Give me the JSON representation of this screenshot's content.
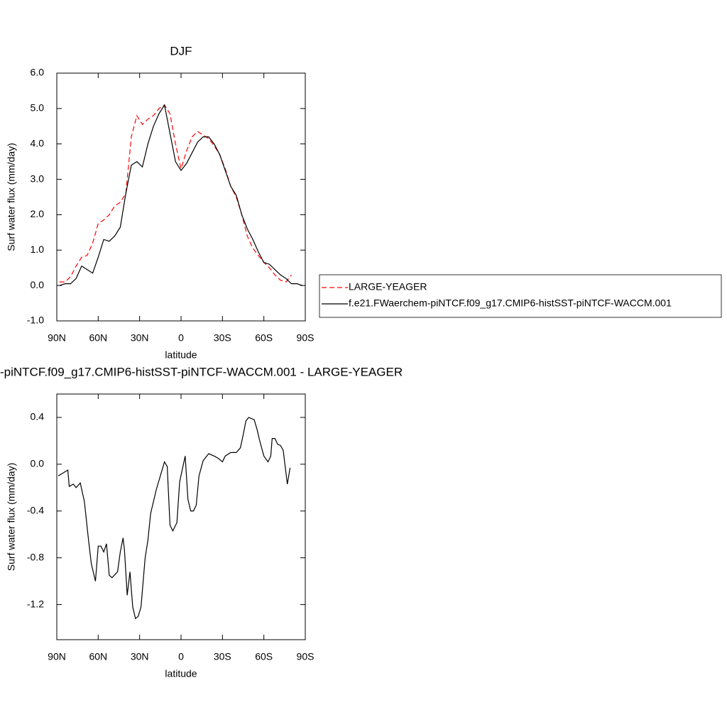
{
  "chart_data": [
    {
      "type": "line",
      "title": "DJF",
      "xlabel": "latitude",
      "ylabel": "Surf water flux (mm/day)",
      "xlim": [
        90,
        -90
      ],
      "xticks": [
        {
          "value": 90,
          "label": "90N"
        },
        {
          "value": 60,
          "label": "60N"
        },
        {
          "value": 30,
          "label": "30N"
        },
        0,
        {
          "value": -30,
          "label": "30S"
        },
        {
          "value": -60,
          "label": "60S"
        },
        {
          "value": -90,
          "label": "90S"
        }
      ],
      "ylim": [
        -1,
        6
      ],
      "yticks": [
        {
          "value": 6,
          "label": "6.0"
        },
        {
          "value": 5,
          "label": "5.0"
        },
        {
          "value": 4,
          "label": "4.0"
        },
        {
          "value": 3,
          "label": "3.0"
        },
        {
          "value": 2,
          "label": "2.0"
        },
        {
          "value": 1,
          "label": "1.0"
        },
        {
          "value": 0,
          "label": "0.0"
        },
        {
          "value": -1,
          "label": "-1.0"
        }
      ],
      "legend": "right",
      "x": [
        88,
        84,
        80,
        76,
        72,
        68,
        64,
        60,
        56,
        52,
        48,
        44,
        40,
        36,
        32,
        28,
        24,
        20,
        16,
        12,
        8,
        4,
        0,
        -4,
        -8,
        -12,
        -16,
        -20,
        -24,
        -28,
        -32,
        -36,
        -40,
        -44,
        -48,
        -52,
        -56,
        -60,
        -64,
        -68,
        -72,
        -76,
        -80,
        -84,
        -88
      ],
      "series": [
        {
          "name": "LARGE-YEAGER",
          "color": "#ff0000",
          "line_style": "dashed",
          "values": [
            0.1,
            0.1,
            0.25,
            0.55,
            0.8,
            0.85,
            1.2,
            1.75,
            1.85,
            2.0,
            2.25,
            2.35,
            2.6,
            4.2,
            4.8,
            4.55,
            4.7,
            4.8,
            5.0,
            5.1,
            4.85,
            4.0,
            3.3,
            3.8,
            4.2,
            4.35,
            4.25,
            4.15,
            3.95,
            3.7,
            3.3,
            2.8,
            2.5,
            2.0,
            1.4,
            1.05,
            0.85,
            0.65,
            0.5,
            0.3,
            0.15,
            0.1,
            0.3,
            null,
            null
          ]
        },
        {
          "name": "f.e21.FWaerchem-piNTCF.f09_g17.CMIP6-histSST-piNTCF-WACCM.001",
          "color": "#000000",
          "line_style": "solid",
          "values": [
            0.0,
            0.05,
            0.05,
            0.2,
            0.55,
            0.45,
            0.35,
            0.8,
            1.3,
            1.25,
            1.4,
            1.65,
            2.6,
            3.4,
            3.5,
            3.35,
            4.0,
            4.5,
            4.85,
            5.1,
            4.3,
            3.5,
            3.25,
            3.45,
            3.75,
            4.05,
            4.2,
            4.2,
            4.0,
            3.7,
            3.25,
            2.8,
            2.55,
            2.0,
            1.6,
            1.3,
            0.95,
            0.65,
            0.6,
            0.45,
            0.3,
            0.2,
            0.05,
            0.05,
            0.0
          ]
        }
      ]
    },
    {
      "type": "line",
      "title": "-piNTCF.f09_g17.CMIP6-histSST-piNTCF-WACCM.001 - LARGE-YEAGER",
      "xlabel": "latitude",
      "ylabel": "Surf water flux (mm/day)",
      "xlim": [
        90,
        -90
      ],
      "xticks": [
        {
          "value": 90,
          "label": "90N"
        },
        {
          "value": 60,
          "label": "60N"
        },
        {
          "value": 30,
          "label": "30N"
        },
        0,
        {
          "value": -30,
          "label": "30S"
        },
        {
          "value": -60,
          "label": "60S"
        },
        {
          "value": -90,
          "label": "90S"
        }
      ],
      "ylim": [
        -1.5,
        0.6
      ],
      "yticks": [
        0.4,
        {
          "value": 0,
          "label": "0.0"
        },
        -0.4,
        -0.8,
        -1.2
      ],
      "series": [
        {
          "color": "#000000",
          "line_style": "solid",
          "x": [
            89,
            82,
            81,
            78,
            76,
            73,
            70,
            67,
            65,
            62,
            60,
            58,
            56,
            54,
            52,
            50,
            46,
            44,
            42,
            41,
            39,
            37,
            35,
            33,
            31,
            29,
            26,
            24,
            22,
            18,
            15,
            12,
            10,
            8,
            6,
            3,
            1,
            -3,
            -5,
            -7,
            -9,
            -11,
            -13,
            -16,
            -20,
            -24,
            -27,
            -30,
            -32,
            -36,
            -40,
            -43,
            -45,
            -47,
            -49,
            -53,
            -55,
            -57,
            -60,
            -63,
            -65,
            -66,
            -68,
            -70,
            -72,
            -74,
            -77,
            -79
          ],
          "values": [
            -0.1,
            -0.05,
            -0.19,
            -0.17,
            -0.2,
            -0.16,
            -0.32,
            -0.65,
            -0.85,
            -1.0,
            -0.7,
            -0.7,
            -0.75,
            -0.68,
            -0.95,
            -0.97,
            -0.92,
            -0.75,
            -0.63,
            -0.73,
            -1.12,
            -0.92,
            -1.22,
            -1.32,
            -1.3,
            -1.22,
            -0.8,
            -0.65,
            -0.42,
            -0.22,
            -0.1,
            0.02,
            -0.02,
            -0.52,
            -0.57,
            -0.5,
            -0.15,
            0.07,
            -0.3,
            -0.4,
            -0.4,
            -0.35,
            -0.1,
            0.03,
            0.09,
            0.07,
            0.05,
            0.02,
            0.07,
            0.1,
            0.1,
            0.14,
            0.25,
            0.37,
            0.4,
            0.38,
            0.3,
            0.2,
            0.07,
            0.02,
            0.07,
            0.22,
            0.22,
            0.17,
            0.16,
            0.12,
            -0.17,
            -0.03
          ]
        }
      ]
    }
  ]
}
